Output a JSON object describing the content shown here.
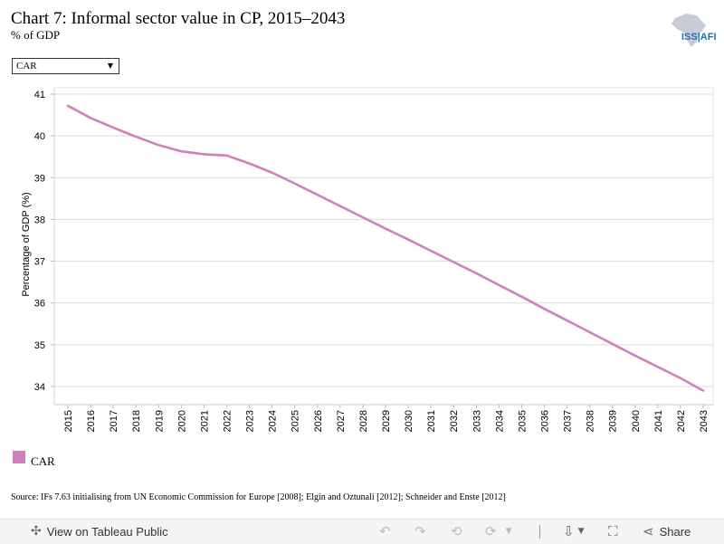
{
  "title": "Chart 7: Informal sector value in CP, 2015–2043",
  "subtitle": "% of GDP",
  "logo_text": "ISS|AFI",
  "filter": {
    "selected": "CAR"
  },
  "chart_data": {
    "type": "line",
    "ylabel": "Percentage of GDP (%)",
    "xlabel": "",
    "ylim": [
      33.6,
      41.2
    ],
    "yticks": [
      34,
      35,
      36,
      37,
      38,
      39,
      40,
      41
    ],
    "x": [
      2015,
      2016,
      2017,
      2018,
      2019,
      2020,
      2021,
      2022,
      2023,
      2024,
      2025,
      2026,
      2027,
      2028,
      2029,
      2030,
      2031,
      2032,
      2033,
      2034,
      2035,
      2036,
      2037,
      2038,
      2039,
      2040,
      2041,
      2042,
      2043
    ],
    "series": [
      {
        "name": "CAR",
        "color": "#d17fbd",
        "values": [
          40.72,
          40.43,
          40.2,
          39.98,
          39.78,
          39.63,
          39.56,
          39.53,
          39.34,
          39.12,
          38.86,
          38.59,
          38.32,
          38.05,
          37.78,
          37.52,
          37.25,
          36.98,
          36.71,
          36.43,
          36.15,
          35.86,
          35.58,
          35.3,
          35.02,
          34.74,
          34.47,
          34.2,
          33.9
        ]
      }
    ],
    "grid": true,
    "legend": "bottom-left"
  },
  "legend": {
    "label": "CAR",
    "color": "#d17fbd"
  },
  "source": "Source: IFs 7.63 initialising from UN Economic Commission for Europe [2008]; Elgin and Oztunali [2012]; Schneider and Enste [2012]",
  "toolbar": {
    "view_label": "View on Tableau Public",
    "share_label": "Share",
    "icons": [
      "tableau-icon",
      "undo-icon",
      "redo-icon",
      "revert-icon",
      "refresh-icon",
      "download-icon",
      "fullscreen-icon",
      "share-icon"
    ]
  }
}
